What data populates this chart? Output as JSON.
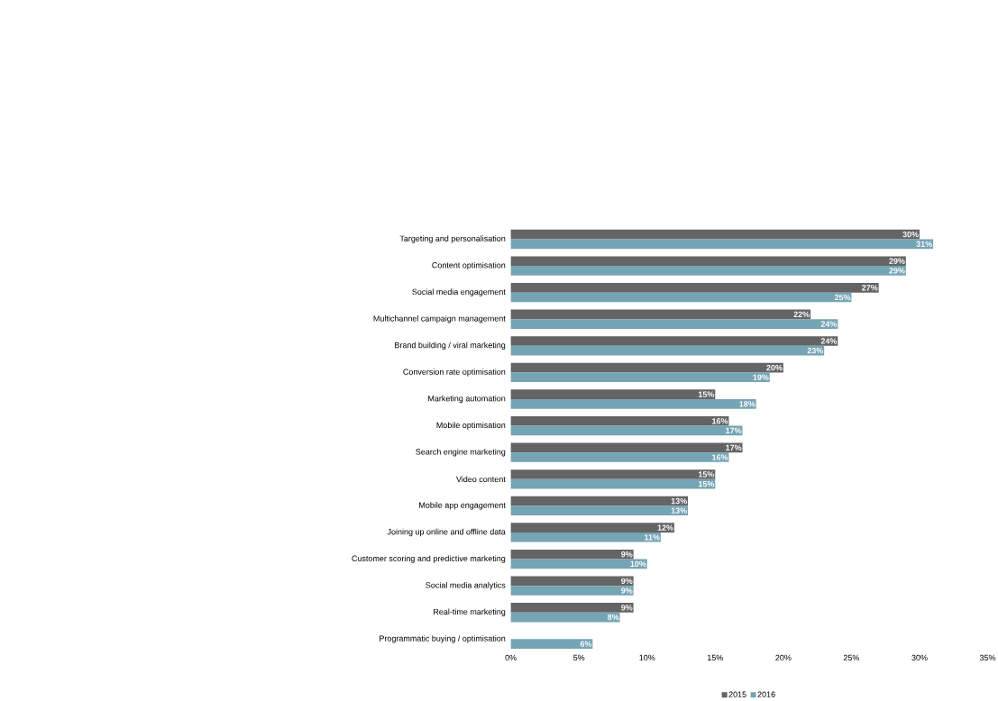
{
  "chart_data": {
    "type": "bar",
    "orientation": "horizontal",
    "categories": [
      "Targeting and personalisation",
      "Content optimisation",
      "Social media engagement",
      "Multichannel campaign management",
      "Brand building / viral marketing",
      "Conversion rate optimisation",
      "Marketing automation",
      "Mobile optimisation",
      "Search engine marketing",
      "Video content",
      "Mobile app engagement",
      "Joining up online and offline data",
      "Customer scoring and predictive marketing",
      "Social media analytics",
      "Real-time marketing",
      "Programmatic buying / optimisation"
    ],
    "series": [
      {
        "name": "2015",
        "color": "#646464",
        "values": [
          30,
          29,
          27,
          22,
          24,
          20,
          15,
          16,
          17,
          15,
          13,
          12,
          9,
          9,
          9,
          null
        ],
        "value_labels": [
          "30%",
          "29%",
          "27%",
          "22%",
          "24%",
          "20%",
          "15%",
          "16%",
          "17%",
          "15%",
          "13%",
          "12%",
          "9%",
          "9%",
          "9%",
          null
        ]
      },
      {
        "name": "2016",
        "color": "#75a4b4",
        "values": [
          31,
          29,
          25,
          24,
          23,
          19,
          18,
          17,
          16,
          15,
          13,
          11,
          10,
          9,
          8,
          6
        ],
        "value_labels": [
          "31%",
          "29%",
          "25%",
          "24%",
          "23%",
          "19%",
          "18%",
          "17%",
          "16%",
          "15%",
          "13%",
          "11%",
          "10%",
          "9%",
          "8%",
          "6%"
        ]
      }
    ],
    "xlim": [
      0,
      35
    ],
    "xticks": [
      {
        "value": 0,
        "label": "0%"
      },
      {
        "value": 5,
        "label": "5%"
      },
      {
        "value": 10,
        "label": "10%"
      },
      {
        "value": 15,
        "label": "15%"
      },
      {
        "value": 20,
        "label": "20%"
      },
      {
        "value": 25,
        "label": "25%"
      },
      {
        "value": 30,
        "label": "30%"
      },
      {
        "value": 35,
        "label": "35%"
      }
    ],
    "legend": "bottom"
  }
}
